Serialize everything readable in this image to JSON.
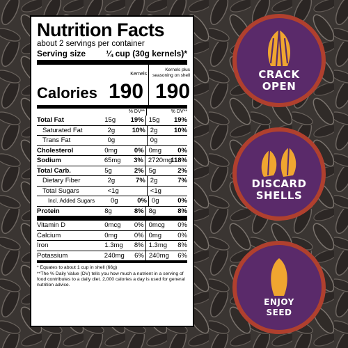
{
  "label": {
    "title": "Nutrition Facts",
    "servings": "about 2 servings per container",
    "serving_size_label": "Serving size",
    "serving_size_value": "¼ cup (30g kernels)*",
    "col_kernels": "Kernels",
    "col_seasoned": "Kernels plus seasoning on shell",
    "calories_label": "Calories",
    "calories_kernels": "190",
    "calories_seasoned": "190",
    "dv_header": "% DV**",
    "nutrients": [
      {
        "name": "Total Fat",
        "bold": true,
        "indent": 0,
        "amt1": "15g",
        "dv1": "19%",
        "amt2": "15g",
        "dv2": "19%"
      },
      {
        "name": "Saturated Fat",
        "bold": false,
        "indent": 1,
        "amt1": "2g",
        "dv1": "10%",
        "amt2": "2g",
        "dv2": "10%"
      },
      {
        "name": "Trans Fat",
        "bold": false,
        "indent": 1,
        "amt1": "0g",
        "dv1": "",
        "amt2": "0g",
        "dv2": ""
      },
      {
        "name": "Cholesterol",
        "bold": true,
        "indent": 0,
        "amt1": "0mg",
        "dv1": "0%",
        "amt2": "0mg",
        "dv2": "0%"
      },
      {
        "name": "Sodium",
        "bold": true,
        "indent": 0,
        "amt1": "65mg",
        "dv1": "3%",
        "amt2": "2720mg",
        "dv2": "118%"
      },
      {
        "name": "Total Carb.",
        "bold": true,
        "indent": 0,
        "amt1": "5g",
        "dv1": "2%",
        "amt2": "5g",
        "dv2": "2%"
      },
      {
        "name": "Dietary Fiber",
        "bold": false,
        "indent": 1,
        "amt1": "2g",
        "dv1": "7%",
        "amt2": "2g",
        "dv2": "7%"
      },
      {
        "name": "Total Sugars",
        "bold": false,
        "indent": 1,
        "amt1": "<1g",
        "dv1": "",
        "amt2": "<1g",
        "dv2": ""
      },
      {
        "name": "Incl. Added Sugars",
        "bold": false,
        "indent": 2,
        "amt1": "0g",
        "dv1": "0%",
        "amt2": "0g",
        "dv2": "0%"
      },
      {
        "name": "Protein",
        "bold": true,
        "indent": 0,
        "amt1": "8g",
        "dv1": "8%",
        "amt2": "8g",
        "dv2": "8%"
      }
    ],
    "vitamins": [
      {
        "name": "Vitamin D",
        "amt1": "0mcg",
        "dv1": "0%",
        "amt2": "0mcg",
        "dv2": "0%"
      },
      {
        "name": "Calcium",
        "amt1": "0mg",
        "dv1": "0%",
        "amt2": "0mg",
        "dv2": "0%"
      },
      {
        "name": "Iron",
        "amt1": "1.3mg",
        "dv1": "8%",
        "amt2": "1.3mg",
        "dv2": "8%"
      },
      {
        "name": "Potassium",
        "amt1": "240mg",
        "dv1": "6%",
        "amt2": "240mg",
        "dv2": "6%"
      }
    ],
    "footnote1": "* Equates to about 1 cup in shell (66g)",
    "footnote2": "**The % Daily Value (DV) tells you how much a nutrient in a serving of food contributes to a daily diet. 2,000 calories a day is used for general nutrition advice."
  },
  "steps": [
    {
      "line1": "CRACK",
      "line2": "OPEN",
      "icon": "cracked-seed-icon"
    },
    {
      "line1": "DISCARD",
      "line2": "SHELLS",
      "icon": "seed-shells-icon"
    },
    {
      "line1": "ENJOY",
      "line2": "SEED",
      "icon": "seed-kernel-icon"
    }
  ],
  "colors": {
    "circle_fill": "#5a2a6a",
    "circle_ring": "#b0402e",
    "icon_fill": "#f0a630"
  }
}
